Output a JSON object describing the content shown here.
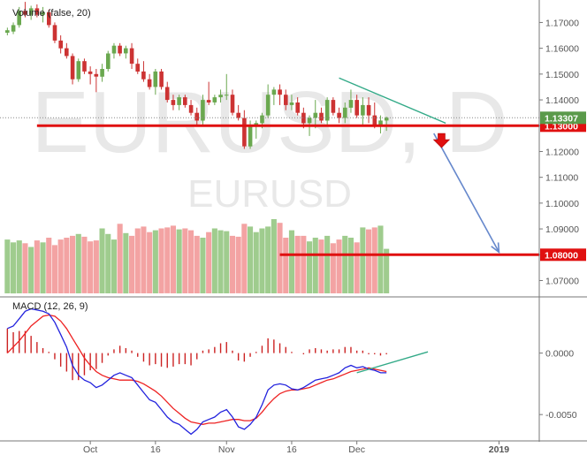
{
  "watermark": {
    "symbol_interval": "EURUSD, D",
    "symbol": "EURUSD"
  },
  "colors": {
    "up": "#6aa84f",
    "down": "#cc3333",
    "vol_up": "#9fcc8e",
    "vol_down": "#f3a3a3",
    "macd_line": "#2222dd",
    "signal_line": "#ee2222",
    "histogram": "#cc2222",
    "level_line": "#e01010",
    "trendline": "#33aa88",
    "projection_arrow": "#6688cc",
    "axis_text": "#555555",
    "divider": "#777777",
    "watermark": "#e8e8e8"
  },
  "chart_data": [
    {
      "type": "candlestick",
      "symbol": "EURUSD",
      "interval": "D",
      "y_ticks": [
        "1.17000",
        "1.16000",
        "1.15000",
        "1.14000",
        "1.13000",
        "1.12000",
        "1.11000",
        "1.10000",
        "1.09000",
        "1.08000",
        "1.07000"
      ],
      "ylim": [
        1.064,
        1.177
      ],
      "x_ticks": [
        {
          "label": "Oct",
          "i": 14
        },
        {
          "label": "16",
          "i": 25
        },
        {
          "label": "Nov",
          "i": 37
        },
        {
          "label": "16",
          "i": 48
        },
        {
          "label": "Dec",
          "i": 59
        },
        {
          "label": "2019",
          "i": 83
        }
      ],
      "x_slots": 90,
      "price_label": "1.13307",
      "price_level": 1.13307,
      "level_lines": [
        {
          "value": 1.13,
          "label": "1.13000",
          "from_i": 5
        },
        {
          "value": 1.08,
          "label": "1.08000",
          "from_i": 46
        }
      ],
      "candles": [
        [
          1.166,
          1.168,
          1.165,
          1.167
        ],
        [
          1.1665,
          1.17,
          1.1655,
          1.169
        ],
        [
          1.169,
          1.176,
          1.168,
          1.1745
        ],
        [
          1.1745,
          1.178,
          1.172,
          1.173
        ],
        [
          1.173,
          1.1765,
          1.171,
          1.1755
        ],
        [
          1.1755,
          1.177,
          1.172,
          1.173
        ],
        [
          1.173,
          1.176,
          1.17,
          1.174
        ],
        [
          1.174,
          1.175,
          1.168,
          1.169
        ],
        [
          1.169,
          1.17,
          1.162,
          1.163
        ],
        [
          1.163,
          1.165,
          1.158,
          1.16
        ],
        [
          1.16,
          1.162,
          1.156,
          1.157
        ],
        [
          1.157,
          1.158,
          1.146,
          1.148
        ],
        [
          1.148,
          1.156,
          1.147,
          1.155
        ],
        [
          1.155,
          1.156,
          1.15,
          1.151
        ],
        [
          1.151,
          1.153,
          1.146,
          1.15
        ],
        [
          1.15,
          1.152,
          1.143,
          1.149
        ],
        [
          1.149,
          1.154,
          1.147,
          1.152
        ],
        [
          1.152,
          1.159,
          1.151,
          1.158
        ],
        [
          1.158,
          1.162,
          1.156,
          1.161
        ],
        [
          1.161,
          1.162,
          1.157,
          1.158
        ],
        [
          1.158,
          1.161,
          1.156,
          1.16
        ],
        [
          1.16,
          1.162,
          1.152,
          1.154
        ],
        [
          1.154,
          1.156,
          1.15,
          1.151
        ],
        [
          1.151,
          1.155,
          1.147,
          1.148
        ],
        [
          1.148,
          1.15,
          1.144,
          1.145
        ],
        [
          1.145,
          1.152,
          1.142,
          1.151
        ],
        [
          1.151,
          1.152,
          1.144,
          1.145
        ],
        [
          1.145,
          1.147,
          1.139,
          1.14
        ],
        [
          1.14,
          1.142,
          1.136,
          1.138
        ],
        [
          1.138,
          1.142,
          1.136,
          1.141
        ],
        [
          1.141,
          1.142,
          1.137,
          1.138
        ],
        [
          1.138,
          1.14,
          1.134,
          1.135
        ],
        [
          1.135,
          1.137,
          1.13,
          1.132
        ],
        [
          1.132,
          1.142,
          1.13,
          1.14
        ],
        [
          1.14,
          1.147,
          1.138,
          1.139
        ],
        [
          1.139,
          1.142,
          1.138,
          1.141
        ],
        [
          1.141,
          1.144,
          1.139,
          1.142
        ],
        [
          1.142,
          1.15,
          1.14,
          1.142
        ],
        [
          1.142,
          1.144,
          1.134,
          1.135
        ],
        [
          1.135,
          1.138,
          1.132,
          1.133
        ],
        [
          1.133,
          1.136,
          1.121,
          1.122
        ],
        [
          1.122,
          1.132,
          1.121,
          1.13
        ],
        [
          1.13,
          1.132,
          1.125,
          1.131
        ],
        [
          1.131,
          1.135,
          1.129,
          1.134
        ],
        [
          1.134,
          1.146,
          1.133,
          1.142
        ],
        [
          1.142,
          1.145,
          1.138,
          1.144
        ],
        [
          1.144,
          1.146,
          1.138,
          1.142
        ],
        [
          1.142,
          1.144,
          1.136,
          1.138
        ],
        [
          1.138,
          1.142,
          1.136,
          1.139
        ],
        [
          1.139,
          1.141,
          1.134,
          1.135
        ],
        [
          1.135,
          1.137,
          1.129,
          1.131
        ],
        [
          1.131,
          1.134,
          1.126,
          1.133
        ],
        [
          1.133,
          1.14,
          1.129,
          1.135
        ],
        [
          1.135,
          1.137,
          1.131,
          1.132
        ],
        [
          1.132,
          1.141,
          1.13,
          1.14
        ],
        [
          1.14,
          1.141,
          1.134,
          1.135
        ],
        [
          1.135,
          1.137,
          1.131,
          1.133
        ],
        [
          1.133,
          1.139,
          1.131,
          1.137
        ],
        [
          1.137,
          1.144,
          1.135,
          1.14
        ],
        [
          1.14,
          1.142,
          1.133,
          1.134
        ],
        [
          1.134,
          1.141,
          1.13,
          1.138
        ],
        [
          1.138,
          1.141,
          1.131,
          1.134
        ],
        [
          1.134,
          1.139,
          1.129,
          1.13
        ],
        [
          1.13,
          1.134,
          1.127,
          1.132
        ],
        [
          1.132,
          1.1335,
          1.128,
          1.1331
        ]
      ]
    },
    {
      "type": "bar",
      "title": "Volume (false, 20)",
      "values": [
        58,
        55,
        57,
        54,
        50,
        57,
        55,
        60,
        52,
        58,
        60,
        62,
        64,
        61,
        56,
        57,
        70,
        64,
        58,
        75,
        65,
        62,
        70,
        72,
        66,
        68,
        70,
        71,
        73,
        69,
        70,
        68,
        62,
        60,
        66,
        70,
        68,
        67,
        62,
        61,
        75,
        72,
        66,
        70,
        72,
        80,
        76,
        60,
        68,
        62,
        62,
        56,
        60,
        58,
        62,
        54,
        58,
        62,
        60,
        55,
        71,
        69,
        71,
        73,
        48
      ],
      "ylim": [
        0,
        80
      ]
    },
    {
      "type": "line",
      "title": "MACD (12, 26, 9)",
      "y_ticks": [
        "0.0000",
        "-0.0050"
      ],
      "ylim": [
        -0.007,
        0.0045
      ],
      "series": [
        {
          "name": "MACD",
          "values": [
            0.002,
            0.0022,
            0.0028,
            0.0034,
            0.0036,
            0.0035,
            0.0034,
            0.0032,
            0.0025,
            0.0015,
            0.0005,
            -0.001,
            -0.0018,
            -0.0022,
            -0.0024,
            -0.0028,
            -0.0026,
            -0.0022,
            -0.0018,
            -0.0016,
            -0.0018,
            -0.002,
            -0.0026,
            -0.0032,
            -0.0038,
            -0.004,
            -0.0046,
            -0.0052,
            -0.0056,
            -0.0058,
            -0.0062,
            -0.0066,
            -0.0062,
            -0.0056,
            -0.0054,
            -0.0052,
            -0.0048,
            -0.0046,
            -0.0052,
            -0.006,
            -0.0062,
            -0.0058,
            -0.0052,
            -0.0042,
            -0.003,
            -0.0026,
            -0.0025,
            -0.0026,
            -0.0029,
            -0.003,
            -0.0028,
            -0.0025,
            -0.0022,
            -0.0021,
            -0.002,
            -0.0018,
            -0.0016,
            -0.0012,
            -0.001,
            -0.0012,
            -0.0011,
            -0.0013,
            -0.0014,
            -0.0016,
            -0.0016
          ]
        },
        {
          "name": "Signal",
          "values": [
            0.0,
            0.0005,
            0.001,
            0.0016,
            0.0022,
            0.0026,
            0.003,
            0.0031,
            0.003,
            0.0026,
            0.002,
            0.0012,
            0.0004,
            -0.0004,
            -0.001,
            -0.0015,
            -0.0018,
            -0.002,
            -0.0021,
            -0.0022,
            -0.0022,
            -0.0022,
            -0.0023,
            -0.0025,
            -0.0028,
            -0.0031,
            -0.0035,
            -0.004,
            -0.0045,
            -0.0049,
            -0.0053,
            -0.0056,
            -0.0057,
            -0.0058,
            -0.0057,
            -0.0057,
            -0.0056,
            -0.0055,
            -0.0054,
            -0.0054,
            -0.0055,
            -0.0055,
            -0.0053,
            -0.0048,
            -0.0042,
            -0.0037,
            -0.0033,
            -0.0031,
            -0.003,
            -0.003,
            -0.0029,
            -0.0028,
            -0.0026,
            -0.0024,
            -0.0022,
            -0.0021,
            -0.0019,
            -0.0017,
            -0.0015,
            -0.0014,
            -0.0013,
            -0.0012,
            -0.0013,
            -0.0014,
            -0.0015
          ]
        },
        {
          "name": "Histogram",
          "values": [
            0.002,
            0.0017,
            0.0018,
            0.0018,
            0.0014,
            0.0009,
            0.0004,
            0.0001,
            -0.0005,
            -0.0011,
            -0.0015,
            -0.0022,
            -0.0022,
            -0.0018,
            -0.0014,
            -0.0013,
            -0.0008,
            -0.0002,
            0.0003,
            0.0006,
            0.0004,
            0.0002,
            -0.0003,
            -0.0007,
            -0.001,
            -0.0009,
            -0.0011,
            -0.0012,
            -0.0011,
            -0.0009,
            -0.0009,
            -0.001,
            -0.0005,
            0.0002,
            0.0003,
            0.0005,
            0.0008,
            0.0009,
            0.0002,
            -0.0006,
            -0.0007,
            -0.0003,
            0.0001,
            0.0006,
            0.0012,
            0.0011,
            0.0008,
            0.0005,
            0.0001,
            0.0,
            -0.0001,
            0.0003,
            0.0004,
            0.0003,
            0.0002,
            0.0003,
            0.0003,
            0.0005,
            0.0005,
            0.0002,
            0.0002,
            -0.0001,
            -0.0001,
            -0.0002,
            -0.0001
          ]
        }
      ]
    }
  ]
}
